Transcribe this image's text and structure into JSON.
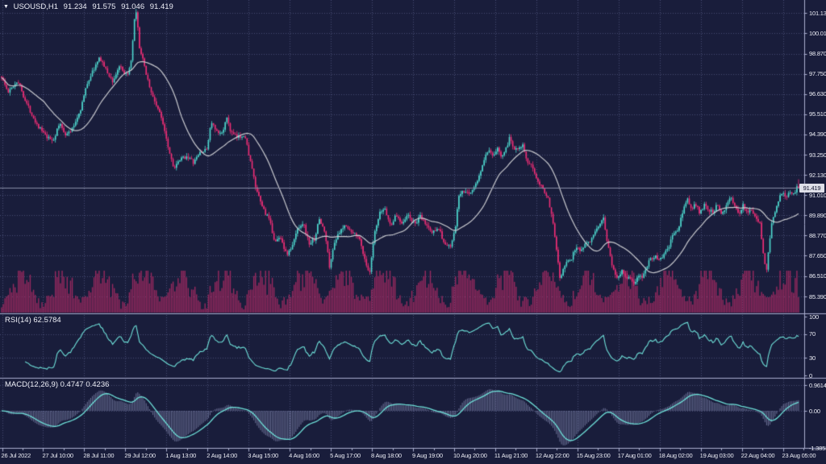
{
  "header": {
    "collapse_arrow": "▼",
    "symbol": "USOUSD,H1",
    "open": "91.234",
    "high": "91.575",
    "low": "91.046",
    "close": "91.419"
  },
  "colors": {
    "background": "#191D3B",
    "grid": "#474C73",
    "bull": "#4ED9CF",
    "bear": "#F02E76",
    "volume": "#98295F",
    "ma_line": "#C9CACF",
    "indicator_line": "#6FE2DA",
    "macd_histogram": "#9096BE",
    "separator": "#ABAFD0",
    "axis_text": "#EDEEF6",
    "price_line": "#888DA6",
    "price_tag_bg": "#DEDFE8",
    "price_tag_text": "#13162F"
  },
  "price_axis": {
    "labels": [
      "101.130",
      "100.010",
      "98.870",
      "97.750",
      "96.630",
      "95.510",
      "94.390",
      "93.250",
      "92.130",
      "91.010",
      "89.890",
      "88.770",
      "87.650",
      "86.510",
      "85.390"
    ],
    "current_price": "91.419"
  },
  "time_axis": {
    "labels": [
      "26 Jul 2022",
      "27 Jul 10:00",
      "28 Jul 11:00",
      "29 Jul 12:00",
      "1 Aug 13:00",
      "2 Aug 14:00",
      "3 Aug 15:00",
      "4 Aug 16:00",
      "5 Aug 17:00",
      "8 Aug 18:00",
      "9 Aug 19:00",
      "10 Aug 20:00",
      "11 Aug 21:00",
      "12 Aug 22:00",
      "15 Aug 23:00",
      "17 Aug 01:00",
      "18 Aug 02:00",
      "19 Aug 03:00",
      "22 Aug 04:00",
      "23 Aug 05:00"
    ]
  },
  "rsi": {
    "label": "RSI(14) 62.5784",
    "period": 14,
    "last_value": 62.5784,
    "scale_labels": [
      "100",
      "70",
      "30",
      "0"
    ],
    "scale_values": [
      100,
      70,
      30,
      0
    ],
    "level_lines": [
      70,
      30
    ]
  },
  "macd": {
    "label": "MACD(12,26,9) 0.4747 0.4236",
    "params": [
      12,
      26,
      9
    ],
    "last_values": [
      0.4747,
      0.4236
    ],
    "scale_labels": [
      "0.9614",
      "0.00",
      "-1.3853"
    ],
    "scale_values": [
      0.9614,
      0,
      -1.3853
    ]
  },
  "chart_data": {
    "type": "candlestick",
    "title": "USOUSD,H1",
    "symbol": "USOUSD",
    "timeframe": "H1",
    "ohlc_display": {
      "open": 91.234,
      "high": 91.575,
      "low": 91.046,
      "close": 91.419
    },
    "current_price": 91.419,
    "y_range": [
      85.39,
      101.13
    ],
    "x_range_labels": [
      "26 Jul 2022",
      "23 Aug 05:00"
    ],
    "has_volume_histogram": true,
    "legend_position": "none",
    "grid": "dotted",
    "indicators": [
      {
        "name": "SMA",
        "period": 26
      },
      {
        "name": "RSI",
        "period": 14,
        "last_value": 62.5784,
        "range": [
          0,
          100
        ],
        "levels": [
          30,
          70
        ]
      },
      {
        "name": "MACD",
        "params": [
          12,
          26,
          9
        ],
        "last_values": [
          0.4747,
          0.4236
        ],
        "scale_max": 0.9614,
        "scale_min": -1.3853
      }
    ],
    "price_path_keyframes": [
      [
        2,
        97.6
      ],
      [
        10,
        96.7
      ],
      [
        22,
        97.4
      ],
      [
        32,
        96.2
      ],
      [
        45,
        95.0
      ],
      [
        58,
        94.2
      ],
      [
        66,
        94.05
      ],
      [
        74,
        95.0
      ],
      [
        82,
        94.35
      ],
      [
        90,
        94.7
      ],
      [
        100,
        95.8
      ],
      [
        108,
        97.2
      ],
      [
        116,
        98.0
      ],
      [
        124,
        98.65
      ],
      [
        132,
        97.9
      ],
      [
        140,
        97.3
      ],
      [
        148,
        98.2
      ],
      [
        155,
        97.6
      ],
      [
        162,
        98.1
      ],
      [
        167,
        100.9
      ],
      [
        169,
        101.1
      ],
      [
        173,
        99.2
      ],
      [
        180,
        98.0
      ],
      [
        188,
        96.6
      ],
      [
        196,
        95.8
      ],
      [
        203,
        94.9
      ],
      [
        210,
        93.4
      ],
      [
        216,
        92.5
      ],
      [
        224,
        93.0
      ],
      [
        232,
        93.2
      ],
      [
        240,
        92.8
      ],
      [
        248,
        93.4
      ],
      [
        256,
        93.5
      ],
      [
        262,
        95.1
      ],
      [
        268,
        94.5
      ],
      [
        274,
        94.4
      ],
      [
        282,
        95.3
      ],
      [
        286,
        94.5
      ],
      [
        294,
        94.2
      ],
      [
        303,
        94.4
      ],
      [
        310,
        93.0
      ],
      [
        318,
        91.2
      ],
      [
        326,
        90.3
      ],
      [
        334,
        89.6
      ],
      [
        341,
        88.4
      ],
      [
        348,
        88.7
      ],
      [
        355,
        87.7
      ],
      [
        362,
        88.1
      ],
      [
        369,
        89.2
      ],
      [
        376,
        89.5
      ],
      [
        383,
        88.3
      ],
      [
        390,
        88.6
      ],
      [
        396,
        89.7
      ],
      [
        403,
        88.9
      ],
      [
        409,
        86.9
      ],
      [
        414,
        88.4
      ],
      [
        421,
        88.9
      ],
      [
        429,
        89.4
      ],
      [
        436,
        88.9
      ],
      [
        444,
        88.8
      ],
      [
        451,
        87.7
      ],
      [
        458,
        86.5
      ],
      [
        464,
        88.8
      ],
      [
        471,
        90.0
      ],
      [
        477,
        90.3
      ],
      [
        484,
        89.3
      ],
      [
        491,
        89.9
      ],
      [
        498,
        89.5
      ],
      [
        506,
        89.9
      ],
      [
        514,
        89.4
      ],
      [
        521,
        89.8
      ],
      [
        528,
        89.4
      ],
      [
        536,
        88.9
      ],
      [
        543,
        89.3
      ],
      [
        551,
        88.3
      ],
      [
        558,
        88.1
      ],
      [
        564,
        89.0
      ],
      [
        569,
        91.0
      ],
      [
        574,
        91.2
      ],
      [
        580,
        91.1
      ],
      [
        586,
        91.3
      ],
      [
        592,
        91.8
      ],
      [
        599,
        92.8
      ],
      [
        605,
        93.5
      ],
      [
        611,
        93.1
      ],
      [
        616,
        93.6
      ],
      [
        622,
        93.2
      ],
      [
        628,
        93.7
      ],
      [
        632,
        94.2
      ],
      [
        637,
        93.6
      ],
      [
        643,
        93.7
      ],
      [
        648,
        93.8
      ],
      [
        654,
        92.7
      ],
      [
        660,
        92.6
      ],
      [
        666,
        91.9
      ],
      [
        672,
        91.5
      ],
      [
        678,
        91.0
      ],
      [
        684,
        90.0
      ],
      [
        689,
        88.4
      ],
      [
        694,
        86.5
      ],
      [
        698,
        86.8
      ],
      [
        703,
        87.4
      ],
      [
        708,
        87.4
      ],
      [
        714,
        88.2
      ],
      [
        720,
        87.9
      ],
      [
        726,
        88.4
      ],
      [
        732,
        88.5
      ],
      [
        738,
        88.9
      ],
      [
        744,
        89.4
      ],
      [
        748,
        89.9
      ],
      [
        752,
        88.6
      ],
      [
        757,
        87.5
      ],
      [
        762,
        86.6
      ],
      [
        766,
        86.4
      ],
      [
        771,
        86.9
      ],
      [
        776,
        86.5
      ],
      [
        781,
        86.4
      ],
      [
        786,
        86.1
      ],
      [
        791,
        86.5
      ],
      [
        796,
        86.4
      ],
      [
        801,
        87.0
      ],
      [
        806,
        87.5
      ],
      [
        812,
        87.6
      ],
      [
        817,
        87.4
      ],
      [
        823,
        87.7
      ],
      [
        828,
        88.0
      ],
      [
        834,
        88.8
      ],
      [
        840,
        89.0
      ],
      [
        846,
        90.0
      ],
      [
        852,
        90.9
      ],
      [
        857,
        90.2
      ],
      [
        862,
        90.5
      ],
      [
        868,
        90.0
      ],
      [
        874,
        90.5
      ],
      [
        879,
        90.2
      ],
      [
        884,
        90.1
      ],
      [
        890,
        90.5
      ],
      [
        895,
        90.0
      ],
      [
        901,
        90.5
      ],
      [
        906,
        91.0
      ],
      [
        911,
        90.3
      ],
      [
        916,
        89.9
      ],
      [
        921,
        90.5
      ],
      [
        926,
        90.1
      ],
      [
        931,
        90.2
      ],
      [
        937,
        89.8
      ],
      [
        942,
        89.4
      ],
      [
        947,
        87.6
      ],
      [
        950,
        86.7
      ],
      [
        954,
        88.5
      ],
      [
        958,
        89.8
      ],
      [
        962,
        90.3
      ],
      [
        967,
        91.0
      ],
      [
        971,
        91.2
      ],
      [
        975,
        90.9
      ],
      [
        980,
        91.2
      ],
      [
        985,
        91.1
      ],
      [
        990,
        91.9
      ],
      [
        994,
        91.5
      ],
      [
        997,
        91.419
      ]
    ]
  }
}
